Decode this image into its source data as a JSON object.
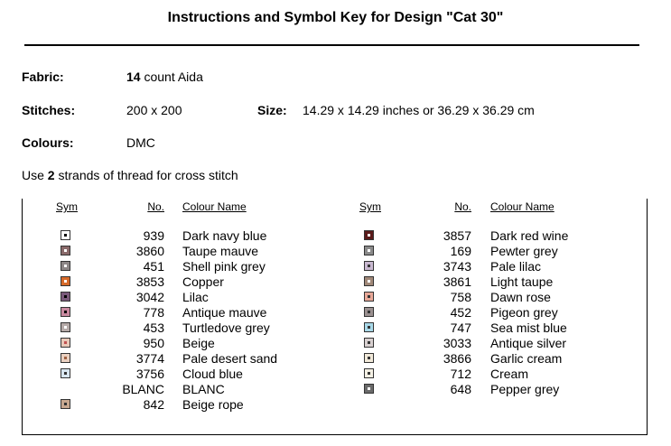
{
  "header": {
    "title": "Instructions and Symbol Key for Design \"Cat 30\""
  },
  "fabric": {
    "label": "Fabric:",
    "count": "14",
    "rest": "count Aida"
  },
  "stitches": {
    "label": "Stitches:",
    "value": "200 x 200"
  },
  "size": {
    "label": "Size:",
    "value": "14.29 x 14.29 inches or 36.29 x 36.29 cm"
  },
  "colours": {
    "label": "Colours:",
    "value": "DMC"
  },
  "note": {
    "before": "Use",
    "strands": "2",
    "after": "strands of thread for cross stitch"
  },
  "table": {
    "left": {
      "columns": [
        "Sym",
        "No.",
        "Colour Name"
      ],
      "rows": [
        [
          "939",
          "Dark navy blue"
        ],
        [
          "3860",
          "Taupe mauve"
        ],
        [
          "451",
          "Shell pink grey"
        ],
        [
          "3853",
          "Copper"
        ],
        [
          "3042",
          "Lilac"
        ],
        [
          "778",
          "Antique mauve"
        ],
        [
          "453",
          "Turtledove grey"
        ],
        [
          "950",
          "Beige"
        ],
        [
          "3774",
          "Pale desert sand"
        ],
        [
          "3756",
          "Cloud blue"
        ],
        [
          "BLANC",
          "BLANC"
        ],
        [
          "842",
          "Beige rope"
        ]
      ]
    },
    "right": {
      "columns": [
        "Sym",
        "No.",
        "Colour Name"
      ],
      "rows": [
        [
          "3857",
          "Dark red wine"
        ],
        [
          "169",
          "Pewter grey"
        ],
        [
          "3743",
          "Pale lilac"
        ],
        [
          "3861",
          "Light taupe"
        ],
        [
          "758",
          "Dawn rose"
        ],
        [
          "452",
          "Pigeon grey"
        ],
        [
          "747",
          "Sea mist blue"
        ],
        [
          "3033",
          "Antique silver"
        ],
        [
          "3866",
          "Garlic cream"
        ],
        [
          "712",
          "Cream"
        ],
        [
          "648",
          "Pepper grey"
        ]
      ]
    }
  }
}
